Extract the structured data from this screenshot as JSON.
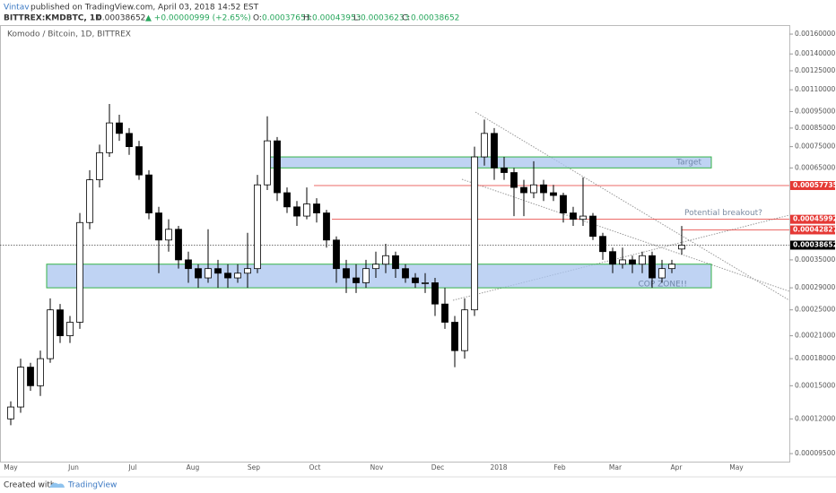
{
  "header": {
    "author": "Vintav",
    "published": "published on TradingView.com, April 03, 2018 14:52 EST",
    "symbol": "BITTREX:KMDBTC, 1D",
    "last": "0.00038652",
    "change": "▲ +0.00000999 (+2.65%)",
    "ohlc": [
      "O:",
      "0.00037653",
      "H:",
      "0.00043953",
      "L:",
      "0.00036233",
      "C:",
      "0.00038652"
    ]
  },
  "footer": {
    "created": "Created with",
    "brand": "TradingView"
  },
  "chart_data": {
    "type": "candlestick",
    "title": "Komodo / Bitcoin, 1D, BITTREX",
    "log_scale": true,
    "up_color": "#ffffff",
    "down_color": "#000000",
    "edge_color": "#000000",
    "categories": [
      "May",
      "Jun",
      "Jul",
      "Aug",
      "Sep",
      "Oct",
      "Nov",
      "Dec",
      "2018",
      "Feb",
      "Mar",
      "Apr",
      "May"
    ],
    "ylim": [
      9e-05,
      0.0017
    ],
    "yticks": [
      {
        "value": 0.0016,
        "label": "0.00160000"
      },
      {
        "value": 0.0014,
        "label": "0.00140000"
      },
      {
        "value": 0.00125,
        "label": "0.00125000"
      },
      {
        "value": 0.0011,
        "label": "0.00110000"
      },
      {
        "value": 0.00095,
        "label": "0.00095000"
      },
      {
        "value": 0.00085,
        "label": "0.00085000"
      },
      {
        "value": 0.00075,
        "label": "0.00075000"
      },
      {
        "value": 0.00065,
        "label": "0.00065000"
      },
      {
        "value": 0.00035,
        "label": "0.00035000"
      },
      {
        "value": 0.00029,
        "label": "0.00029000"
      },
      {
        "value": 0.00025,
        "label": "0.00025000"
      },
      {
        "value": 0.00021,
        "label": "0.00021000"
      },
      {
        "value": 0.00018,
        "label": "0.00018000"
      },
      {
        "value": 0.00015,
        "label": "0.00015000"
      },
      {
        "value": 0.00012,
        "label": "0.00012000"
      },
      {
        "value": 9.5e-05,
        "label": "0.00009500"
      }
    ],
    "levels": [
      {
        "value": 0.00057735,
        "color": "#e53935"
      },
      {
        "value": 0.00045992,
        "color": "#e53935"
      },
      {
        "value": 0.00042827,
        "color": "#e53935"
      },
      {
        "value": 0.00038652,
        "color": "#000000"
      }
    ],
    "zones": [
      {
        "label": "Target",
        "low": 0.00065,
        "high": 0.0007,
        "color": "#a9c4ef",
        "edge": "#35b34a"
      },
      {
        "label": "COP ZONE!!",
        "low": 0.00029,
        "high": 0.00034,
        "color": "#a9c4ef",
        "edge": "#35b34a"
      }
    ],
    "annotations": [
      {
        "text": "Potential breakout?",
        "value": 0.00045992
      }
    ],
    "candles": [
      [
        0.00012,
        0.000135,
        0.000115,
        0.00013
      ],
      [
        0.00013,
        0.00018,
        0.000125,
        0.00017
      ],
      [
        0.00017,
        0.000175,
        0.000145,
        0.00015
      ],
      [
        0.00015,
        0.00019,
        0.00014,
        0.00018
      ],
      [
        0.00018,
        0.00027,
        0.000175,
        0.00025
      ],
      [
        0.00025,
        0.00026,
        0.0002,
        0.00021
      ],
      [
        0.00021,
        0.00024,
        0.0002,
        0.00023
      ],
      [
        0.00023,
        0.00048,
        0.00022,
        0.00045
      ],
      [
        0.00045,
        0.00064,
        0.00043,
        0.0006
      ],
      [
        0.0006,
        0.00076,
        0.00057,
        0.00072
      ],
      [
        0.00072,
        0.001,
        0.0007,
        0.00088
      ],
      [
        0.00088,
        0.00093,
        0.00078,
        0.00082
      ],
      [
        0.00082,
        0.00085,
        0.00071,
        0.00075
      ],
      [
        0.00075,
        0.00078,
        0.0006,
        0.00062
      ],
      [
        0.00062,
        0.00064,
        0.00046,
        0.00048
      ],
      [
        0.00048,
        0.0005,
        0.00032,
        0.0004
      ],
      [
        0.0004,
        0.00046,
        0.00037,
        0.00043
      ],
      [
        0.00043,
        0.00044,
        0.00033,
        0.00035
      ],
      [
        0.00035,
        0.00037,
        0.0003,
        0.00033
      ],
      [
        0.00033,
        0.00034,
        0.00029,
        0.00031
      ],
      [
        0.00031,
        0.00043,
        0.0003,
        0.00033
      ],
      [
        0.00033,
        0.00035,
        0.00029,
        0.00032
      ],
      [
        0.00032,
        0.00034,
        0.00029,
        0.00031
      ],
      [
        0.00031,
        0.00034,
        0.0003,
        0.00032
      ],
      [
        0.00032,
        0.00042,
        0.00029,
        0.00033
      ],
      [
        0.00033,
        0.00062,
        0.00032,
        0.00058
      ],
      [
        0.00058,
        0.00092,
        0.00056,
        0.00078
      ],
      [
        0.00078,
        0.0008,
        0.00052,
        0.00055
      ],
      [
        0.00055,
        0.00057,
        0.00048,
        0.0005
      ],
      [
        0.0005,
        0.00052,
        0.00044,
        0.00047
      ],
      [
        0.00047,
        0.00057,
        0.00046,
        0.00051
      ],
      [
        0.00051,
        0.00053,
        0.00045,
        0.00048
      ],
      [
        0.00048,
        0.00049,
        0.00038,
        0.0004
      ],
      [
        0.0004,
        0.00041,
        0.0003,
        0.00033
      ],
      [
        0.00033,
        0.00035,
        0.00028,
        0.00031
      ],
      [
        0.00031,
        0.00034,
        0.00028,
        0.0003
      ],
      [
        0.0003,
        0.00035,
        0.00029,
        0.00033
      ],
      [
        0.00033,
        0.00037,
        0.00031,
        0.00034
      ],
      [
        0.00034,
        0.00039,
        0.00032,
        0.00036
      ],
      [
        0.00036,
        0.00037,
        0.00031,
        0.00033
      ],
      [
        0.00033,
        0.00034,
        0.0003,
        0.00031
      ],
      [
        0.00031,
        0.00032,
        0.00029,
        0.0003
      ],
      [
        0.0003,
        0.00032,
        0.00028,
        0.0003
      ],
      [
        0.0003,
        0.00031,
        0.00024,
        0.00026
      ],
      [
        0.00026,
        0.00029,
        0.00022,
        0.00023
      ],
      [
        0.00023,
        0.00024,
        0.00017,
        0.00019
      ],
      [
        0.00019,
        0.00027,
        0.00018,
        0.00025
      ],
      [
        0.00025,
        0.00075,
        0.00024,
        0.0007
      ],
      [
        0.0007,
        0.0009,
        0.00066,
        0.00082
      ],
      [
        0.00082,
        0.00085,
        0.0006,
        0.00065
      ],
      [
        0.00065,
        0.0007,
        0.0006,
        0.00063
      ],
      [
        0.00063,
        0.00065,
        0.00047,
        0.00057
      ],
      [
        0.00057,
        0.0006,
        0.00047,
        0.00055
      ],
      [
        0.00055,
        0.00068,
        0.00053,
        0.00058
      ],
      [
        0.00058,
        0.0006,
        0.00052,
        0.00055
      ],
      [
        0.00055,
        0.00058,
        0.00052,
        0.00054
      ],
      [
        0.00054,
        0.00055,
        0.00045,
        0.00048
      ],
      [
        0.00048,
        0.0005,
        0.00044,
        0.00046
      ],
      [
        0.00046,
        0.00061,
        0.00044,
        0.00047
      ],
      [
        0.00047,
        0.00048,
        0.0004,
        0.00041
      ],
      [
        0.00041,
        0.00042,
        0.00035,
        0.00037
      ],
      [
        0.00037,
        0.00038,
        0.00032,
        0.00034
      ],
      [
        0.00034,
        0.00038,
        0.00033,
        0.00035
      ],
      [
        0.00035,
        0.00036,
        0.00032,
        0.00034
      ],
      [
        0.00034,
        0.00037,
        0.00032,
        0.00036
      ],
      [
        0.00036,
        0.00037,
        0.00029,
        0.00031
      ],
      [
        0.00031,
        0.00035,
        0.0003,
        0.00033
      ],
      [
        0.00033,
        0.00035,
        0.00032,
        0.00034
      ],
      [
        0.00037653,
        0.00043953,
        0.00036233,
        0.00038652
      ]
    ]
  }
}
